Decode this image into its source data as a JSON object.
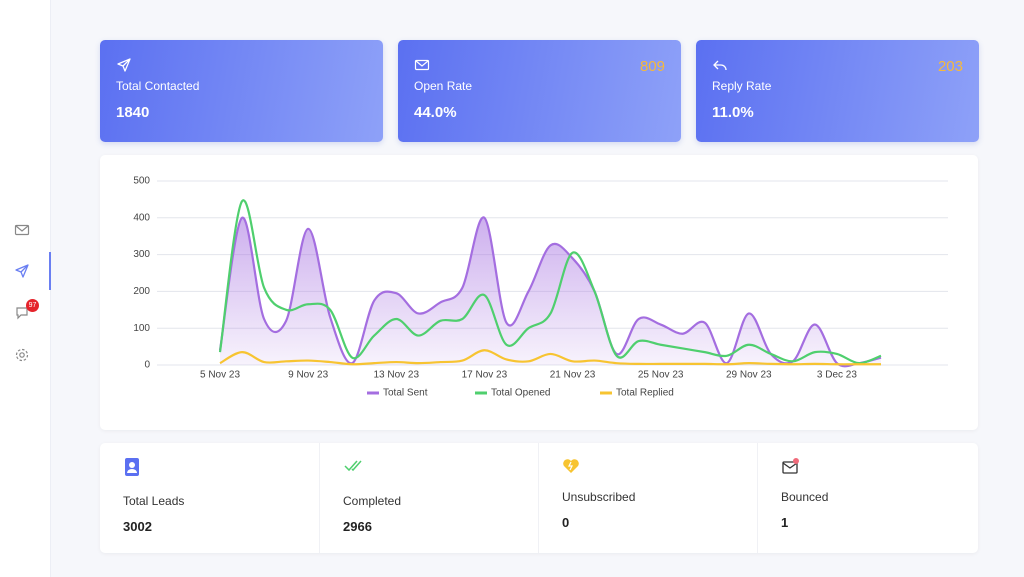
{
  "sidebar": {
    "badge": "97"
  },
  "cards": [
    {
      "label": "Total Contacted",
      "value": "1840"
    },
    {
      "label": "Open Rate",
      "value": "44.0%",
      "count": "809"
    },
    {
      "label": "Reply Rate",
      "value": "11.0%",
      "count": "203"
    }
  ],
  "chart_data": {
    "type": "line",
    "categories": [
      "5 Nov 23",
      null,
      null,
      null,
      "9 Nov 23",
      null,
      null,
      null,
      "13 Nov 23",
      null,
      null,
      null,
      "17 Nov 23",
      null,
      null,
      null,
      "21 Nov 23",
      null,
      null,
      null,
      "25 Nov 23",
      null,
      null,
      null,
      "29 Nov 23",
      null,
      null,
      null,
      "3 Dec 23",
      null,
      null
    ],
    "series": [
      {
        "name": "Total Sent",
        "color": "#a46ee0",
        "area": true,
        "values": [
          40,
          400,
          125,
          120,
          370,
          130,
          5,
          175,
          195,
          140,
          170,
          210,
          400,
          115,
          200,
          325,
          290,
          200,
          30,
          125,
          110,
          85,
          115,
          5,
          140,
          30,
          10,
          110,
          5,
          5,
          20
        ]
      },
      {
        "name": "Total Opened",
        "color": "#4fcf6e",
        "values": [
          35,
          445,
          210,
          150,
          165,
          150,
          20,
          80,
          125,
          80,
          120,
          125,
          190,
          55,
          100,
          140,
          305,
          200,
          25,
          65,
          55,
          45,
          35,
          25,
          55,
          30,
          10,
          35,
          30,
          5,
          25
        ]
      },
      {
        "name": "Total Replied",
        "color": "#f7c431",
        "values": [
          5,
          35,
          8,
          10,
          12,
          8,
          2,
          5,
          8,
          5,
          8,
          12,
          40,
          15,
          10,
          30,
          10,
          12,
          5,
          3,
          3,
          3,
          3,
          2,
          5,
          3,
          2,
          3,
          2,
          2,
          2
        ]
      }
    ],
    "ylim": [
      0,
      500
    ],
    "yticks": [
      0,
      100,
      200,
      300,
      400,
      500
    ],
    "grid": true
  },
  "stats": [
    {
      "label": "Total Leads",
      "value": "3002"
    },
    {
      "label": "Completed",
      "value": "2966"
    },
    {
      "label": "Unsubscribed",
      "value": "0"
    },
    {
      "label": "Bounced",
      "value": "1"
    }
  ]
}
